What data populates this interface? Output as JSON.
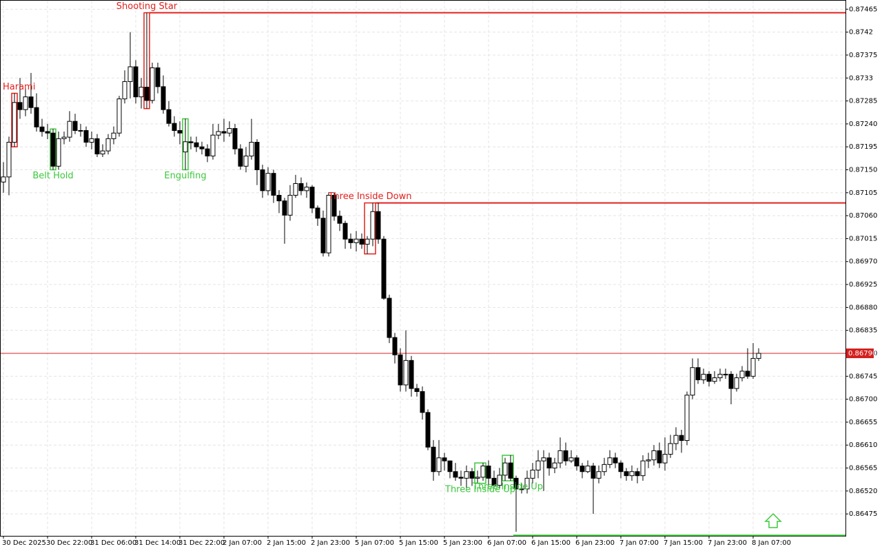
{
  "chart_data": {
    "type": "candlestick",
    "categories": [
      "30 Dec 2025",
      null,
      null,
      null,
      null,
      null,
      null,
      null,
      "30 Dec 22:00",
      null,
      null,
      null,
      null,
      null,
      null,
      null,
      "31 Dec 06:00",
      null,
      null,
      null,
      null,
      null,
      null,
      null,
      "31 Dec 14:00",
      null,
      null,
      null,
      null,
      null,
      null,
      null,
      "31 Dec 22:00",
      null,
      null,
      null,
      null,
      null,
      null,
      null,
      "2 Jan 07:00",
      null,
      null,
      null,
      null,
      null,
      null,
      null,
      "2 Jan 15:00",
      null,
      null,
      null,
      null,
      null,
      null,
      null,
      "2 Jan 23:00",
      null,
      null,
      null,
      null,
      null,
      null,
      null,
      "5 Jan 07:00",
      null,
      null,
      null,
      null,
      null,
      null,
      null,
      "5 Jan 15:00",
      null,
      null,
      null,
      null,
      null,
      null,
      null,
      "5 Jan 23:00",
      null,
      null,
      null,
      null,
      null,
      null,
      null,
      "6 Jan 07:00",
      null,
      null,
      null,
      null,
      null,
      null,
      null,
      "6 Jan 15:00",
      null,
      null,
      null,
      null,
      null,
      null,
      null,
      "6 Jan 23:00",
      null,
      null,
      null,
      null,
      null,
      null,
      null,
      "7 Jan 07:00",
      null,
      null,
      null,
      null,
      null,
      null,
      null,
      "7 Jan 15:00",
      null,
      null,
      null,
      null,
      null,
      null,
      null,
      "7 Jan 23:00",
      null,
      null,
      null,
      null,
      null,
      null,
      null,
      "8 Jan 07:00",
      null
    ],
    "candles": [
      [
        0.87126,
        0.87165,
        0.87105,
        0.87136
      ],
      [
        0.87136,
        0.87215,
        0.871,
        0.87204
      ],
      [
        0.87204,
        0.873,
        0.87195,
        0.87282
      ],
      [
        0.87282,
        0.8733,
        0.8725,
        0.87268
      ],
      [
        0.87268,
        0.8731,
        0.87255,
        0.87293
      ],
      [
        0.87293,
        0.8734,
        0.8726,
        0.87272
      ],
      [
        0.87272,
        0.873,
        0.87225,
        0.87234
      ],
      [
        0.87234,
        0.8725,
        0.87215,
        0.87225
      ],
      [
        0.87225,
        0.8724,
        0.8721,
        0.87222
      ],
      [
        0.87222,
        0.8723,
        0.8715,
        0.87157
      ],
      [
        0.87157,
        0.87225,
        0.8715,
        0.87211
      ],
      [
        0.87211,
        0.87225,
        0.872,
        0.87214
      ],
      [
        0.87214,
        0.87265,
        0.87205,
        0.87245
      ],
      [
        0.87245,
        0.8726,
        0.8722,
        0.87227
      ],
      [
        0.87227,
        0.8724,
        0.87215,
        0.87227
      ],
      [
        0.87227,
        0.87235,
        0.87195,
        0.87204
      ],
      [
        0.87204,
        0.87225,
        0.8719,
        0.87211
      ],
      [
        0.87211,
        0.8722,
        0.87175,
        0.87181
      ],
      [
        0.87181,
        0.872,
        0.87175,
        0.87187
      ],
      [
        0.87187,
        0.8722,
        0.8718,
        0.87211
      ],
      [
        0.87211,
        0.87235,
        0.872,
        0.87222
      ],
      [
        0.87222,
        0.87295,
        0.87215,
        0.87289
      ],
      [
        0.87289,
        0.87345,
        0.8728,
        0.87323
      ],
      [
        0.87323,
        0.8742,
        0.8729,
        0.87352
      ],
      [
        0.87352,
        0.87365,
        0.8728,
        0.87293
      ],
      [
        0.87293,
        0.8733,
        0.8727,
        0.87312
      ],
      [
        0.87312,
        0.87458,
        0.8727,
        0.87286
      ],
      [
        0.87286,
        0.8736,
        0.8728,
        0.8735
      ],
      [
        0.8735,
        0.8736,
        0.873,
        0.87313
      ],
      [
        0.87313,
        0.87335,
        0.8726,
        0.87268
      ],
      [
        0.87268,
        0.87285,
        0.87235,
        0.87241
      ],
      [
        0.87241,
        0.87255,
        0.87215,
        0.87227
      ],
      [
        0.87227,
        0.87245,
        0.872,
        0.87222
      ],
      [
        0.87185,
        0.8725,
        0.8715,
        0.87205
      ],
      [
        0.87205,
        0.87215,
        0.8719,
        0.87203
      ],
      [
        0.87203,
        0.87215,
        0.87185,
        0.87195
      ],
      [
        0.87195,
        0.87205,
        0.8718,
        0.87191
      ],
      [
        0.87191,
        0.872,
        0.87165,
        0.87177
      ],
      [
        0.87177,
        0.8724,
        0.8717,
        0.87218
      ],
      [
        0.87218,
        0.8724,
        0.8721,
        0.87225
      ],
      [
        0.87225,
        0.8725,
        0.87205,
        0.87222
      ],
      [
        0.87222,
        0.87245,
        0.87215,
        0.87231
      ],
      [
        0.87231,
        0.8724,
        0.8718,
        0.87191
      ],
      [
        0.87191,
        0.872,
        0.8715,
        0.87157
      ],
      [
        0.87157,
        0.87195,
        0.87145,
        0.87177
      ],
      [
        0.87177,
        0.8725,
        0.8717,
        0.87204
      ],
      [
        0.87204,
        0.8721,
        0.8712,
        0.8715
      ],
      [
        0.8715,
        0.8716,
        0.87095,
        0.87109
      ],
      [
        0.87109,
        0.87155,
        0.871,
        0.87143
      ],
      [
        0.87143,
        0.8715,
        0.87085,
        0.871
      ],
      [
        0.871,
        0.8711,
        0.87065,
        0.87089
      ],
      [
        0.87089,
        0.87095,
        0.87005,
        0.87061
      ],
      [
        0.87061,
        0.8712,
        0.8705,
        0.871
      ],
      [
        0.871,
        0.8714,
        0.87095,
        0.87123
      ],
      [
        0.87123,
        0.87135,
        0.871,
        0.87109
      ],
      [
        0.87109,
        0.87125,
        0.87095,
        0.87116
      ],
      [
        0.87116,
        0.8712,
        0.87065,
        0.87075
      ],
      [
        0.87075,
        0.8708,
        0.8704,
        0.87055
      ],
      [
        0.87055,
        0.8707,
        0.8698,
        0.86987
      ],
      [
        0.86987,
        0.87105,
        0.8698,
        0.871
      ],
      [
        0.871,
        0.87105,
        0.8705,
        0.87059
      ],
      [
        0.87059,
        0.8707,
        0.8703,
        0.87045
      ],
      [
        0.87045,
        0.8705,
        0.86995,
        0.87014
      ],
      [
        0.87014,
        0.87025,
        0.86995,
        0.87007
      ],
      [
        0.87007,
        0.8703,
        0.8699,
        0.87014
      ],
      [
        0.87014,
        0.87025,
        0.86995,
        0.87004
      ],
      [
        0.87004,
        0.8702,
        0.86985,
        0.87014
      ],
      [
        0.87014,
        0.87085,
        0.87,
        0.87068
      ],
      [
        0.87068,
        0.87085,
        0.87005,
        0.87014
      ],
      [
        0.87014,
        0.8702,
        0.86895,
        0.86898
      ],
      [
        0.86898,
        0.86905,
        0.8681,
        0.86821
      ],
      [
        0.86821,
        0.8683,
        0.8677,
        0.86787
      ],
      [
        0.86787,
        0.868,
        0.86715,
        0.86728
      ],
      [
        0.86728,
        0.86835,
        0.86715,
        0.86776
      ],
      [
        0.86776,
        0.86785,
        0.86705,
        0.86721
      ],
      [
        0.86721,
        0.8673,
        0.86705,
        0.86715
      ],
      [
        0.86715,
        0.86725,
        0.8666,
        0.86674
      ],
      [
        0.86674,
        0.8668,
        0.866,
        0.86606
      ],
      [
        0.86606,
        0.8662,
        0.8654,
        0.86558
      ],
      [
        0.86558,
        0.8662,
        0.8655,
        0.86585
      ],
      [
        0.86585,
        0.86595,
        0.8656,
        0.86579
      ],
      [
        0.86579,
        0.8658,
        0.86545,
        0.86558
      ],
      [
        0.86558,
        0.86575,
        0.8654,
        0.86547
      ],
      [
        0.86547,
        0.8656,
        0.8653,
        0.86545
      ],
      [
        0.86545,
        0.8657,
        0.86525,
        0.86558
      ],
      [
        0.86558,
        0.86565,
        0.8653,
        0.86545
      ],
      [
        0.86545,
        0.8656,
        0.86535,
        0.86547
      ],
      [
        0.86547,
        0.86575,
        0.8654,
        0.86569
      ],
      [
        0.86569,
        0.8658,
        0.8653,
        0.86545
      ],
      [
        0.86545,
        0.8656,
        0.86525,
        0.86531
      ],
      [
        0.86531,
        0.86565,
        0.86525,
        0.86551
      ],
      [
        0.86551,
        0.86585,
        0.8654,
        0.86575
      ],
      [
        0.86575,
        0.8659,
        0.8654,
        0.86545
      ],
      [
        0.86545,
        0.8655,
        0.8644,
        0.86524
      ],
      [
        0.86524,
        0.86535,
        0.86515,
        0.86524
      ],
      [
        0.86524,
        0.8656,
        0.86515,
        0.86545
      ],
      [
        0.86545,
        0.86575,
        0.86535,
        0.86561
      ],
      [
        0.86561,
        0.866,
        0.86545,
        0.86579
      ],
      [
        0.86579,
        0.866,
        0.8652,
        0.86585
      ],
      [
        0.86585,
        0.86595,
        0.8655,
        0.86565
      ],
      [
        0.86565,
        0.86585,
        0.86555,
        0.86575
      ],
      [
        0.86575,
        0.86625,
        0.86565,
        0.86599
      ],
      [
        0.86599,
        0.86615,
        0.8657,
        0.86579
      ],
      [
        0.86579,
        0.866,
        0.86575,
        0.86585
      ],
      [
        0.86585,
        0.8659,
        0.8656,
        0.86569
      ],
      [
        0.86569,
        0.86575,
        0.86545,
        0.86558
      ],
      [
        0.86558,
        0.8658,
        0.86555,
        0.86569
      ],
      [
        0.86569,
        0.86575,
        0.86475,
        0.86545
      ],
      [
        0.86545,
        0.8657,
        0.86535,
        0.86558
      ],
      [
        0.86558,
        0.86585,
        0.8655,
        0.86572
      ],
      [
        0.86572,
        0.866,
        0.86565,
        0.86585
      ],
      [
        0.86585,
        0.86595,
        0.86565,
        0.86575
      ],
      [
        0.86575,
        0.8658,
        0.86545,
        0.86558
      ],
      [
        0.86558,
        0.86565,
        0.8654,
        0.8655
      ],
      [
        0.8655,
        0.8657,
        0.8654,
        0.86558
      ],
      [
        0.86558,
        0.86565,
        0.86535,
        0.8655
      ],
      [
        0.8655,
        0.8659,
        0.8654,
        0.86579
      ],
      [
        0.86579,
        0.86595,
        0.86565,
        0.86581
      ],
      [
        0.86581,
        0.8661,
        0.8657,
        0.86599
      ],
      [
        0.86599,
        0.86615,
        0.86565,
        0.86575
      ],
      [
        0.86575,
        0.86625,
        0.8656,
        0.86592
      ],
      [
        0.86592,
        0.8663,
        0.86585,
        0.86613
      ],
      [
        0.86613,
        0.86645,
        0.866,
        0.86629
      ],
      [
        0.86629,
        0.8664,
        0.86595,
        0.86619
      ],
      [
        0.86619,
        0.86715,
        0.8661,
        0.86708
      ],
      [
        0.86708,
        0.8678,
        0.867,
        0.86762
      ],
      [
        0.86762,
        0.8678,
        0.8673,
        0.86738
      ],
      [
        0.86738,
        0.8676,
        0.8673,
        0.86749
      ],
      [
        0.86749,
        0.86755,
        0.86725,
        0.86735
      ],
      [
        0.86735,
        0.86755,
        0.8673,
        0.86742
      ],
      [
        0.86742,
        0.8676,
        0.86735,
        0.86749
      ],
      [
        0.86749,
        0.8676,
        0.8674,
        0.86749
      ],
      [
        0.86749,
        0.86755,
        0.8669,
        0.86721
      ],
      [
        0.86721,
        0.8675,
        0.86715,
        0.86742
      ],
      [
        0.86742,
        0.86765,
        0.86735,
        0.86755
      ],
      [
        0.86755,
        0.868,
        0.8674,
        0.86745
      ],
      [
        0.86745,
        0.8681,
        0.8674,
        0.8678
      ],
      [
        0.8678,
        0.868,
        0.86775,
        0.8679
      ]
    ],
    "ylim": [
      0.86432,
      0.87483
    ],
    "yticks": [
      0.87465,
      0.8742,
      0.87375,
      0.8733,
      0.87285,
      {
        "value": 0.8724,
        "label": "0.87240"
      },
      0.87195,
      {
        "value": 0.8715,
        "label": "0.87150"
      },
      0.87105,
      {
        "value": 0.8706,
        "label": "0.87060"
      },
      0.87015,
      {
        "value": 0.8697,
        "label": "0.86970"
      },
      0.86925,
      {
        "value": 0.8688,
        "label": "0.86880"
      },
      0.86835,
      {
        "value": 0.8679,
        "label": "0.86790"
      },
      0.86745,
      {
        "value": 0.867,
        "label": "0.86700"
      },
      0.86655,
      {
        "value": 0.8661,
        "label": "0.86610"
      },
      0.86565,
      {
        "value": 0.8652,
        "label": "0.86520"
      },
      0.86475
    ],
    "grid": true,
    "current_price": 0.8679,
    "current_price_label": "0.86790",
    "current_price_color": "#d42020",
    "bull_color": "#ffffff",
    "bear_color": "#000000",
    "patterns": [
      {
        "label": "Harami",
        "from": 2,
        "to": 2,
        "color": "#e0201c"
      },
      {
        "label": "Belt Hold",
        "from": 9,
        "to": 9,
        "color": "#3cc83c"
      },
      {
        "label": "Shooting Star",
        "from": 26,
        "to": 26,
        "color": "#e0201c",
        "level": 0.87458
      },
      {
        "label": "Engulfing",
        "from": 33,
        "to": 33,
        "color": "#3cc83c"
      },
      {
        "label": "Three Inside Down",
        "from": 66,
        "to": 67,
        "color": "#e0201c",
        "level": 0.87085
      },
      {
        "label": "Three Inside Up",
        "from": 86,
        "to": 87,
        "color": "#3cc83c"
      },
      {
        "label": "Three Inside Up",
        "from": 91,
        "to": 92,
        "color": "#3cc83c",
        "level": 0.86433
      }
    ]
  }
}
